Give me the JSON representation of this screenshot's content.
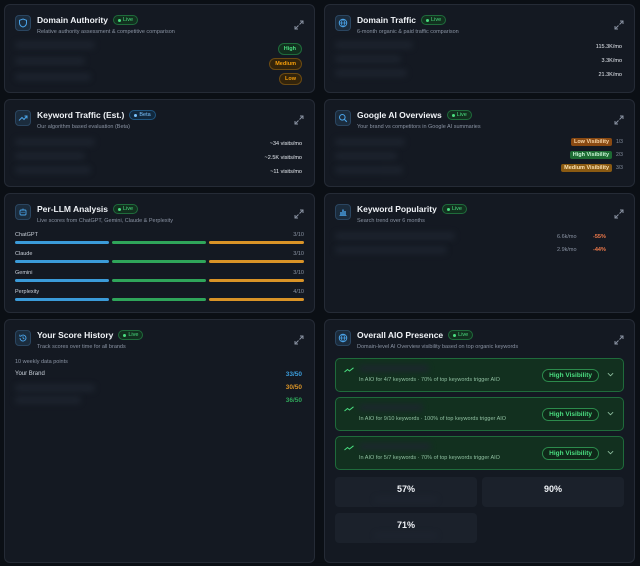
{
  "cards": {
    "domain_authority": {
      "title": "Domain Authority",
      "badge": "Live",
      "subtitle": "Relative authority assessment & competitive comparison",
      "levels": [
        "High",
        "Medium",
        "Low"
      ]
    },
    "domain_traffic": {
      "title": "Domain Traffic",
      "badge": "Live",
      "subtitle": "6-month organic & paid traffic comparison",
      "values": [
        "115.3K/mo",
        "3.3K/mo",
        "21.3K/mo"
      ]
    },
    "keyword_traffic": {
      "title": "Keyword Traffic (Est.)",
      "badge": "Beta",
      "subtitle": "Our algorithm based evaluation (Beta)",
      "values": [
        "~34 visits/mo",
        "~2.5K visits/mo",
        "~11 visits/mo"
      ]
    },
    "google_ai": {
      "title": "Google AI Overviews",
      "badge": "Live",
      "subtitle": "Your brand vs competitors in Google AI summaries",
      "rows": [
        {
          "label": "Low Visibility",
          "count": "1/3"
        },
        {
          "label": "High Visibility",
          "count": "2/3"
        },
        {
          "label": "Medium Visibility",
          "count": "3/3"
        }
      ]
    },
    "per_llm": {
      "title": "Per-LLM Analysis",
      "badge": "Live",
      "subtitle": "Live scores from ChatGPT, Gemini, Claude & Perplexity",
      "rows": [
        {
          "name": "ChatGPT",
          "score": "3/10"
        },
        {
          "name": "Claude",
          "score": "3/10"
        },
        {
          "name": "Gemini",
          "score": "3/10"
        },
        {
          "name": "Perplexity",
          "score": "4/10"
        }
      ]
    },
    "keyword_popularity": {
      "title": "Keyword Popularity",
      "badge": "Live",
      "subtitle": "Search trend over 6 months",
      "rows": [
        {
          "volume": "6.6k/mo",
          "change": "-55%"
        },
        {
          "volume": "2.9k/mo",
          "change": "-44%"
        }
      ]
    },
    "score_history": {
      "title": "Your Score History",
      "badge": "Live",
      "subtitle": "Track scores over time for all brands",
      "points_label": "10 weekly data points",
      "brand_label": "Your Brand",
      "scores": [
        "33/50",
        "30/50",
        "36/50"
      ]
    },
    "overall_aio": {
      "title": "Overall AIO Presence",
      "badge": "Live",
      "subtitle": "Domain-level AI Overview visibility based on top organic keywords",
      "rows": [
        {
          "desc": "In AIO for 4/7 keywords · 70% of top keywords trigger AIO",
          "status": "High Visibility"
        },
        {
          "desc": "In AIO for 9/10 keywords · 100% of top keywords trigger AIO",
          "status": "High Visibility"
        },
        {
          "desc": "In AIO for 5/7 keywords · 70% of top keywords trigger AIO",
          "status": "High Visibility"
        }
      ],
      "stats": [
        "57%",
        "90%",
        "71%"
      ]
    }
  },
  "colors": {
    "live": "#4ade80",
    "beta": "#7cc4ff",
    "bar_blue": "#3b9bd9",
    "bar_green": "#2fa55a",
    "bar_orange": "#d99327",
    "negative": "#f27a4a"
  }
}
